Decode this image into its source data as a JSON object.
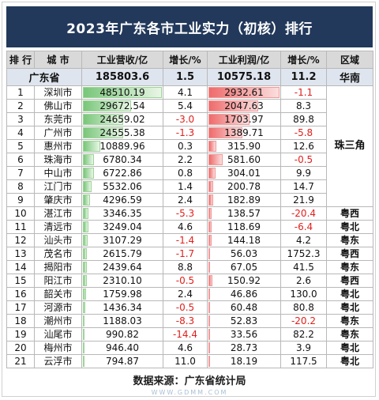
{
  "chart_data": {
    "type": "table",
    "title": "2023年广东各市工业实力（初核）排行",
    "columns": [
      "排 行",
      "城 市",
      "工业营收/亿",
      "增长/%",
      "工业利润/亿",
      "增长/%",
      "区域"
    ],
    "total": {
      "name": "广东省",
      "revenue": "185803.6",
      "revenue_growth": "1.5",
      "profit": "10575.18",
      "profit_growth": "11.2",
      "region": "华南"
    },
    "merged_regions": [
      "珠三角"
    ],
    "rows": [
      {
        "rank": "1",
        "city": "深圳市",
        "revenue": "48510.19",
        "revenue_growth": "4.1",
        "profit": "2932.61",
        "profit_growth": "-1.1",
        "region": "珠三角"
      },
      {
        "rank": "2",
        "city": "佛山市",
        "revenue": "29672.54",
        "revenue_growth": "5.4",
        "profit": "2047.63",
        "profit_growth": "8.3",
        "region": "珠三角"
      },
      {
        "rank": "3",
        "city": "东莞市",
        "revenue": "24659.02",
        "revenue_growth": "-3.0",
        "profit": "1703.97",
        "profit_growth": "89.8",
        "region": "珠三角"
      },
      {
        "rank": "4",
        "city": "广州市",
        "revenue": "24555.38",
        "revenue_growth": "-1.3",
        "profit": "1389.71",
        "profit_growth": "-5.8",
        "region": "珠三角"
      },
      {
        "rank": "5",
        "city": "惠州市",
        "revenue": "10889.96",
        "revenue_growth": "0.3",
        "profit": "315.90",
        "profit_growth": "12.6",
        "region": "珠三角"
      },
      {
        "rank": "6",
        "city": "珠海市",
        "revenue": "6780.34",
        "revenue_growth": "2.2",
        "profit": "581.60",
        "profit_growth": "-0.5",
        "region": "珠三角"
      },
      {
        "rank": "7",
        "city": "中山市",
        "revenue": "6722.86",
        "revenue_growth": "0.8",
        "profit": "304.01",
        "profit_growth": "9.9",
        "region": "珠三角"
      },
      {
        "rank": "8",
        "city": "江门市",
        "revenue": "5532.06",
        "revenue_growth": "1.4",
        "profit": "200.78",
        "profit_growth": "14.7",
        "region": "珠三角"
      },
      {
        "rank": "9",
        "city": "肇庆市",
        "revenue": "4296.59",
        "revenue_growth": "2.4",
        "profit": "182.89",
        "profit_growth": "21.9",
        "region": "珠三角"
      },
      {
        "rank": "10",
        "city": "湛江市",
        "revenue": "3346.35",
        "revenue_growth": "-5.3",
        "profit": "138.57",
        "profit_growth": "-20.4",
        "region": "粤西"
      },
      {
        "rank": "11",
        "city": "清远市",
        "revenue": "3249.04",
        "revenue_growth": "4.6",
        "profit": "118.69",
        "profit_growth": "-6.4",
        "region": "粤北"
      },
      {
        "rank": "12",
        "city": "汕头市",
        "revenue": "3107.29",
        "revenue_growth": "-1.4",
        "profit": "144.18",
        "profit_growth": "4.2",
        "region": "粤东"
      },
      {
        "rank": "13",
        "city": "茂名市",
        "revenue": "2615.79",
        "revenue_growth": "-1.7",
        "profit": "56.03",
        "profit_growth": "1752.3",
        "region": "粤西"
      },
      {
        "rank": "14",
        "city": "揭阳市",
        "revenue": "2439.64",
        "revenue_growth": "8.8",
        "profit": "67.05",
        "profit_growth": "41.5",
        "region": "粤东"
      },
      {
        "rank": "15",
        "city": "阳江市",
        "revenue": "2310.10",
        "revenue_growth": "-0.5",
        "profit": "150.92",
        "profit_growth": "2.6",
        "region": "粤西"
      },
      {
        "rank": "16",
        "city": "韶关市",
        "revenue": "1759.98",
        "revenue_growth": "2.4",
        "profit": "46.86",
        "profit_growth": "130.0",
        "region": "粤北"
      },
      {
        "rank": "17",
        "city": "河源市",
        "revenue": "1436.34",
        "revenue_growth": "-0.5",
        "profit": "60.48",
        "profit_growth": "80.8",
        "region": "粤北"
      },
      {
        "rank": "18",
        "city": "潮州市",
        "revenue": "1188.03",
        "revenue_growth": "-8.3",
        "profit": "52.83",
        "profit_growth": "-20.2",
        "region": "粤东"
      },
      {
        "rank": "19",
        "city": "汕尾市",
        "revenue": "990.82",
        "revenue_growth": "-14.4",
        "profit": "33.56",
        "profit_growth": "82.2",
        "region": "粤东"
      },
      {
        "rank": "20",
        "city": "梅州市",
        "revenue": "946.40",
        "revenue_growth": "4.6",
        "profit": "28.73",
        "profit_growth": "3.9",
        "region": "粤北"
      },
      {
        "rank": "21",
        "city": "云浮市",
        "revenue": "794.87",
        "revenue_growth": "11.0",
        "profit": "18.19",
        "profit_growth": "117.5",
        "region": "粤北"
      }
    ]
  },
  "source": "数据来源：广东省统计局",
  "watermark": "WWW.GDMM.COM",
  "colors": {
    "title_bg": "#22395b",
    "header_bg": "#d9d9d9",
    "total_bg": "#dfe5ee",
    "negative": "#e0201c",
    "revenue_bar": "#78c679",
    "profit_bar": "#ef6b6b"
  }
}
